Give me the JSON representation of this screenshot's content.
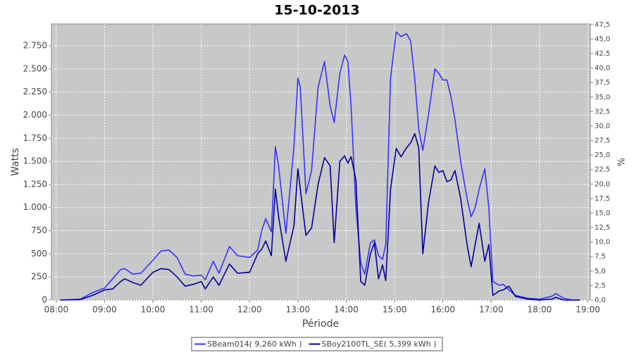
{
  "chart_data": {
    "type": "line",
    "title": "15-10-2013",
    "x_label": "Période",
    "y_label": "Watts",
    "y2_label": "%",
    "grid": true,
    "legend": "bottom",
    "x": [
      "08:05",
      "08:30",
      "08:45",
      "09:00",
      "09:10",
      "09:20",
      "09:25",
      "09:35",
      "09:45",
      "10:00",
      "10:10",
      "10:20",
      "10:30",
      "10:40",
      "10:50",
      "11:00",
      "11:05",
      "11:15",
      "11:22",
      "11:35",
      "11:45",
      "12:00",
      "12:10",
      "12:15",
      "12:20",
      "12:27",
      "12:32",
      "12:36",
      "12:45",
      "12:55",
      "13:00",
      "13:03",
      "13:10",
      "13:17",
      "13:25",
      "13:33",
      "13:40",
      "13:45",
      "13:52",
      "13:58",
      "14:02",
      "14:06",
      "14:12",
      "14:18",
      "14:23",
      "14:30",
      "14:35",
      "14:40",
      "14:45",
      "14:49",
      "14:55",
      "15:02",
      "15:08",
      "15:15",
      "15:20",
      "15:25",
      "15:30",
      "15:35",
      "15:42",
      "15:50",
      "15:55",
      "16:00",
      "16:05",
      "16:10",
      "16:15",
      "16:22",
      "16:30",
      "16:35",
      "16:40",
      "16:45",
      "16:52",
      "16:57",
      "17:02",
      "17:10",
      "17:15",
      "17:22",
      "17:30",
      "17:45",
      "18:00",
      "18:15",
      "18:20",
      "18:30",
      "18:40",
      "18:50"
    ],
    "series": [
      {
        "name": "SBeam014( 9,260 kWh )",
        "color": "#3333ff",
        "values": [
          0,
          10,
          80,
          130,
          230,
          330,
          340,
          280,
          290,
          430,
          530,
          540,
          460,
          280,
          260,
          270,
          220,
          420,
          290,
          580,
          480,
          460,
          540,
          750,
          880,
          740,
          1660,
          1450,
          720,
          1650,
          2400,
          2300,
          1150,
          1400,
          2300,
          2580,
          2100,
          1920,
          2450,
          2650,
          2580,
          2100,
          1000,
          400,
          280,
          620,
          650,
          480,
          440,
          600,
          2400,
          2900,
          2850,
          2880,
          2800,
          2400,
          1850,
          1620,
          2000,
          2500,
          2450,
          2380,
          2380,
          2200,
          1950,
          1500,
          1100,
          900,
          1000,
          1200,
          1420,
          1000,
          200,
          160,
          170,
          110,
          50,
          20,
          10,
          40,
          70,
          20,
          0,
          0
        ]
      },
      {
        "name": "SBoy2100TL_SE( 5,399 kWh )",
        "color": "#000099",
        "values": [
          0,
          5,
          50,
          110,
          120,
          200,
          230,
          190,
          160,
          300,
          340,
          330,
          250,
          150,
          170,
          200,
          120,
          250,
          160,
          390,
          290,
          300,
          500,
          550,
          640,
          480,
          1200,
          900,
          420,
          800,
          1420,
          1200,
          700,
          780,
          1250,
          1540,
          1450,
          620,
          1500,
          1560,
          1480,
          1550,
          1300,
          200,
          160,
          500,
          620,
          230,
          380,
          210,
          1200,
          1640,
          1550,
          1650,
          1700,
          1800,
          1650,
          500,
          1050,
          1450,
          1380,
          1400,
          1280,
          1300,
          1400,
          1100,
          600,
          360,
          600,
          830,
          420,
          600,
          50,
          100,
          110,
          150,
          40,
          10,
          0,
          10,
          30,
          0,
          0,
          0
        ]
      }
    ],
    "xlim": [
      "07:54",
      "19:03"
    ],
    "xticks": [
      "08:00",
      "09:00",
      "10:00",
      "11:00",
      "12:00",
      "13:00",
      "14:00",
      "15:00",
      "16:00",
      "17:00",
      "18:00",
      "19:00"
    ],
    "ylim": [
      0,
      2986
    ],
    "yticks": [
      0,
      250,
      500,
      750,
      {
        "value": 1000,
        "label": "1.000"
      },
      {
        "value": 1250,
        "label": "1.250"
      },
      {
        "value": 1500,
        "label": "1.500"
      },
      {
        "value": 1750,
        "label": "1.750"
      },
      {
        "value": 2000,
        "label": "2.000"
      },
      {
        "value": 2250,
        "label": "2.250"
      },
      {
        "value": 2500,
        "label": "2.500"
      },
      {
        "value": 2750,
        "label": "2.750"
      }
    ],
    "y2lim": [
      0,
      47.6
    ],
    "y2ticks": [
      {
        "value": 0,
        "label": "0,0"
      },
      {
        "value": 2.5,
        "label": "2,5"
      },
      {
        "value": 5,
        "label": "5,0"
      },
      {
        "value": 7.5,
        "label": "7,5"
      },
      {
        "value": 10,
        "label": "10,0"
      },
      {
        "value": 12.5,
        "label": "12,5"
      },
      {
        "value": 15,
        "label": "15,0"
      },
      {
        "value": 17.5,
        "label": "17,5"
      },
      {
        "value": 20,
        "label": "20,0"
      },
      {
        "value": 22.5,
        "label": "22,5"
      },
      {
        "value": 25,
        "label": "25,0"
      },
      {
        "value": 27.5,
        "label": "27,5"
      },
      {
        "value": 30,
        "label": "30,0"
      },
      {
        "value": 32.5,
        "label": "32,5"
      },
      {
        "value": 35,
        "label": "35,0"
      },
      {
        "value": 37.5,
        "label": "37,5"
      },
      {
        "value": 40,
        "label": "40,0"
      },
      {
        "value": 42.5,
        "label": "42,5"
      },
      {
        "value": 45,
        "label": "45,0"
      },
      {
        "value": 47.5,
        "label": "47,5"
      }
    ]
  }
}
